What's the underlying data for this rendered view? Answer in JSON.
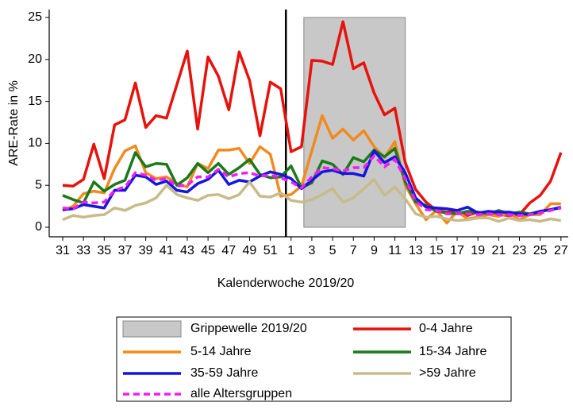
{
  "chart_data": {
    "type": "line",
    "x_label": "Kalenderwoche 2019/20",
    "y_label": "ARE-Rate in %",
    "categories": [
      "31",
      null,
      "33",
      null,
      "35",
      null,
      "37",
      null,
      "39",
      null,
      "41",
      null,
      "43",
      null,
      "45",
      null,
      "47",
      null,
      "49",
      null,
      "51",
      null,
      "1",
      null,
      "3",
      null,
      "5",
      null,
      "7",
      null,
      "9",
      null,
      "11",
      null,
      "13",
      null,
      "15",
      null,
      "17",
      null,
      "19",
      null,
      "21",
      null,
      "23",
      null,
      "25",
      null,
      "27"
    ],
    "ylim": [
      0,
      25
    ],
    "yticks": [
      0,
      5,
      10,
      15,
      20,
      25
    ],
    "shade": {
      "name": "Grippewelle 2019/20",
      "color": "#c8c8c8",
      "start": 23,
      "end": 33
    },
    "series": [
      {
        "name": "0-4 Jahre",
        "color": "#e8120c",
        "values": [
          5.0,
          4.9,
          5.7,
          9.9,
          5.8,
          12.2,
          12.8,
          17.2,
          11.9,
          13.3,
          13.0,
          17.0,
          21.0,
          11.7,
          20.3,
          18.0,
          14.0,
          20.9,
          17.5,
          10.9,
          17.3,
          16.5,
          9.0,
          9.6,
          19.9,
          19.8,
          19.4,
          24.5,
          18.9,
          19.6,
          16.0,
          13.4,
          14.2,
          7.7,
          4.5,
          3.0,
          2.0,
          1.8,
          1.9,
          1.4,
          1.8,
          1.6,
          1.5,
          1.4,
          1.5,
          2.9,
          3.8,
          5.5,
          8.9
        ]
      },
      {
        "name": "5-14 Jahre",
        "color": "#f28a1e",
        "values": [
          2.0,
          2.5,
          4.0,
          4.3,
          4.1,
          7.0,
          9.1,
          9.7,
          6.5,
          5.8,
          6.0,
          5.2,
          4.8,
          7.6,
          7.0,
          9.2,
          9.2,
          9.4,
          7.6,
          9.6,
          8.7,
          3.7,
          3.9,
          4.9,
          9.1,
          13.3,
          10.6,
          11.7,
          10.4,
          11.5,
          9.6,
          8.3,
          10.2,
          5.0,
          2.8,
          0.9,
          2.0,
          0.5,
          1.9,
          1.0,
          1.2,
          1.5,
          1.3,
          1.7,
          0.9,
          1.5,
          1.5,
          2.8,
          2.8
        ]
      },
      {
        "name": "15-34 Jahre",
        "color": "#1a7a1a",
        "values": [
          3.8,
          3.3,
          2.9,
          5.4,
          4.3,
          5.1,
          5.6,
          8.9,
          7.2,
          7.6,
          7.5,
          5.0,
          5.9,
          7.6,
          6.5,
          7.6,
          6.3,
          7.1,
          8.1,
          6.3,
          5.9,
          6.0,
          7.3,
          4.7,
          5.3,
          7.9,
          7.5,
          6.3,
          8.3,
          7.8,
          9.2,
          8.4,
          9.4,
          5.4,
          3.0,
          2.6,
          1.9,
          1.7,
          1.6,
          1.9,
          1.8,
          1.6,
          2.0,
          1.6,
          1.8,
          1.6,
          1.9,
          2.1,
          2.3
        ]
      },
      {
        "name": "35-59 Jahre",
        "color": "#1515e0",
        "values": [
          2.1,
          2.2,
          2.7,
          2.5,
          2.3,
          4.4,
          4.4,
          6.2,
          6.0,
          5.1,
          5.5,
          4.4,
          4.2,
          5.2,
          5.7,
          6.8,
          5.1,
          5.6,
          5.4,
          6.1,
          6.6,
          6.3,
          5.8,
          4.6,
          5.6,
          6.6,
          6.8,
          6.4,
          6.4,
          6.1,
          9.1,
          7.7,
          8.4,
          6.5,
          3.5,
          2.4,
          2.3,
          2.2,
          2.0,
          2.4,
          1.7,
          1.9,
          1.8,
          1.8,
          1.6,
          1.5,
          1.9,
          2.1,
          2.4
        ]
      },
      {
        "name": ">59 Jahre",
        "color": "#c8bb8a",
        "values": [
          0.9,
          1.4,
          1.2,
          1.4,
          1.5,
          2.3,
          2.0,
          2.6,
          2.9,
          3.5,
          5.0,
          3.9,
          3.5,
          3.2,
          3.8,
          3.9,
          3.4,
          3.9,
          5.4,
          3.7,
          3.6,
          4.1,
          3.2,
          3.0,
          3.3,
          3.9,
          4.6,
          3.0,
          3.5,
          4.6,
          5.7,
          3.8,
          4.8,
          3.4,
          1.6,
          1.2,
          1.3,
          1.0,
          0.8,
          0.9,
          1.1,
          1.1,
          0.7,
          1.1,
          0.8,
          0.9,
          0.7,
          1.0,
          0.8
        ]
      },
      {
        "name": "alle Altersgruppen",
        "color": "#f01ef0",
        "dashed": true,
        "values": [
          2.3,
          2.2,
          3.0,
          2.9,
          3.0,
          4.4,
          4.8,
          6.5,
          6.2,
          5.6,
          5.8,
          4.9,
          5.0,
          6.0,
          6.0,
          6.9,
          6.0,
          6.4,
          6.5,
          6.1,
          6.2,
          5.9,
          5.4,
          4.7,
          6.0,
          7.1,
          7.0,
          6.7,
          7.1,
          7.1,
          8.5,
          7.2,
          8.1,
          5.8,
          3.1,
          2.1,
          2.0,
          1.6,
          1.6,
          1.6,
          1.5,
          1.6,
          1.5,
          1.5,
          1.4,
          1.5,
          1.7,
          2.0,
          2.3
        ]
      }
    ]
  }
}
